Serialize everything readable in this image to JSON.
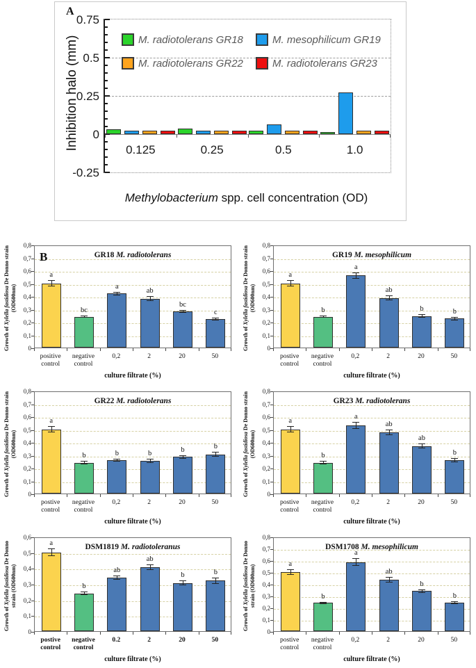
{
  "chart_data": [
    {
      "id": "panel-a",
      "type": "bar",
      "panel_label": "A",
      "ylabel": "Inhibition halo (mm)",
      "xlabel": {
        "italic": "Methylobacterium",
        "rest": " spp. cell concentration (OD)"
      },
      "ylim": [
        -0.25,
        0.75
      ],
      "yticks": [
        {
          "v": 0.75,
          "t": "0.75"
        },
        {
          "v": 0.5,
          "t": "0.5"
        },
        {
          "v": 0.25,
          "t": "0.25"
        },
        {
          "v": 0,
          "t": "0"
        },
        {
          "v": -0.25,
          "t": "-0.25"
        }
      ],
      "grid": "dashed-horizontal",
      "legend_position": "top-inside",
      "categories": [
        "0.125",
        "0.25",
        "0.5",
        "1.0"
      ],
      "series": [
        {
          "name": "M. radiotolerans GR18",
          "color": "#2bd42b",
          "values": [
            0.03,
            0.035,
            0.022,
            0.013
          ]
        },
        {
          "name": "M. mesophilicum GR19",
          "color": "#1e9cec",
          "values": [
            0.022,
            0.022,
            0.065,
            0.275
          ]
        },
        {
          "name": "M. radiotolerans GR22",
          "color": "#ffa41e",
          "values": [
            0.022,
            0.022,
            0.022,
            0.022
          ]
        },
        {
          "name": "M. radiotolerans GR23",
          "color": "#ee0f0f",
          "values": [
            0.022,
            0.022,
            0.022,
            0.022
          ]
        }
      ],
      "legend_text_color": "#595959"
    },
    {
      "id": "gr18",
      "type": "bar",
      "panel_label": "B",
      "title": {
        "prefix": "GR18",
        "species": "M. radiotolerans"
      },
      "ylabel": {
        "pre": "Growth of ",
        "italic": "Xylella fastidiosa",
        "post": " De Donno strain",
        "line2": "(OD600nm)"
      },
      "xlabel": "culture filtrate (%)",
      "ylim": [
        0,
        0.8
      ],
      "ytick_labels": [
        "0,8",
        "0,7",
        "0,6",
        "0,5",
        "0,4",
        "0,3",
        "0,2",
        "0,1",
        "0"
      ],
      "categories": [
        "positive control",
        "negative control",
        "0,2",
        "2",
        "20",
        "50"
      ],
      "values": [
        0.5,
        0.24,
        0.42,
        0.38,
        0.28,
        0.22
      ],
      "errors": [
        0.025,
        0.01,
        0.015,
        0.018,
        0.012,
        0.01
      ],
      "letters": [
        "a",
        "bc",
        "a",
        "ab",
        "bc",
        "c"
      ],
      "bar_colors": [
        "#fbd34e",
        "#54bf82",
        "#4a79b4",
        "#4a79b4",
        "#4a79b4",
        "#4a79b4"
      ]
    },
    {
      "id": "gr19",
      "type": "bar",
      "title": {
        "prefix": "GR19",
        "species": "M. mesophilicum"
      },
      "ylabel": {
        "pre": "Growth of ",
        "italic": "Xylella fastidiosa",
        "post": " De Donno strain",
        "line2": "(OD600nm)"
      },
      "xlabel": "culture filtrate (%)",
      "ylim": [
        0,
        0.8
      ],
      "ytick_labels": [
        "0,8",
        "0,7",
        "0,6",
        "0,5",
        "0,4",
        "0,3",
        "0,2",
        "0,1",
        "0"
      ],
      "categories": [
        "postive control",
        "negative control",
        "0,2",
        "2",
        "20",
        "50"
      ],
      "values": [
        0.5,
        0.24,
        0.56,
        0.385,
        0.245,
        0.225
      ],
      "errors": [
        0.025,
        0.01,
        0.025,
        0.018,
        0.012,
        0.012
      ],
      "letters": [
        "a",
        "b",
        "a",
        "ab",
        "b",
        "b"
      ],
      "bar_colors": [
        "#fbd34e",
        "#54bf82",
        "#4a79b4",
        "#4a79b4",
        "#4a79b4",
        "#4a79b4"
      ]
    },
    {
      "id": "gr22",
      "type": "bar",
      "title": {
        "prefix": "GR22",
        "species": "M. radiotolerans"
      },
      "ylabel": {
        "pre": "Growth of ",
        "italic": "Xylella fastidiosa",
        "post": " De Donno strain",
        "line2": "(OD600nm)"
      },
      "xlabel": "culture filtrate (%)",
      "ylim": [
        0,
        0.8
      ],
      "ytick_labels": [
        "0,8",
        "0,7",
        "0,6",
        "0,5",
        "0,4",
        "0,3",
        "0,2",
        "0,1",
        "0"
      ],
      "categories": [
        "postive control",
        "negative control",
        "0,2",
        "2",
        "20",
        "50"
      ],
      "values": [
        0.5,
        0.24,
        0.26,
        0.255,
        0.285,
        0.305
      ],
      "errors": [
        0.025,
        0.012,
        0.012,
        0.015,
        0.015,
        0.018
      ],
      "letters": [
        "a",
        "b",
        "b",
        "b",
        "b",
        "b"
      ],
      "bar_colors": [
        "#fbd34e",
        "#54bf82",
        "#4a79b4",
        "#4a79b4",
        "#4a79b4",
        "#4a79b4"
      ]
    },
    {
      "id": "gr23",
      "type": "bar",
      "title": {
        "prefix": "GR23",
        "species": "M. radiotolerans"
      },
      "ylabel": {
        "pre": "Growth of ",
        "italic": "Xylella fastidiosa",
        "post": " De Donno strain",
        "line2": "(OD600nm)"
      },
      "xlabel": "culture filtrate (%)",
      "ylim": [
        0,
        0.8
      ],
      "ytick_labels": [
        "0,8",
        "0,7",
        "0,6",
        "0,5",
        "0,4",
        "0,3",
        "0,2",
        "0,1",
        "0"
      ],
      "categories": [
        "postive control",
        "negative control",
        "0,2",
        "2",
        "20",
        "50"
      ],
      "values": [
        0.5,
        0.24,
        0.53,
        0.475,
        0.37,
        0.26
      ],
      "errors": [
        0.025,
        0.012,
        0.025,
        0.022,
        0.02,
        0.015
      ],
      "letters": [
        "a",
        "b",
        "a",
        "ab",
        "ab",
        "b"
      ],
      "bar_colors": [
        "#fbd34e",
        "#54bf82",
        "#4a79b4",
        "#4a79b4",
        "#4a79b4",
        "#4a79b4"
      ]
    },
    {
      "id": "dsm1819",
      "type": "bar",
      "title": {
        "prefix": "DSM1819",
        "species": "M. radiotoleranus"
      },
      "ylabel": {
        "pre": "Growth of ",
        "italic": "Xylella fastidiosa",
        "post": " De Donno",
        "line2": "strain (OD600nm)"
      },
      "xlabel": "culture filtrate (%)",
      "ylim": [
        0,
        0.6
      ],
      "ytick_labels": [
        "0,6",
        "0,5",
        "0,4",
        "0,3",
        "0,2",
        "0,1",
        "0"
      ],
      "categories": [
        "postive control",
        "negative control",
        "0.2",
        "2",
        "20",
        "50"
      ],
      "values": [
        0.5,
        0.24,
        0.34,
        0.405,
        0.305,
        0.32
      ],
      "errors": [
        0.025,
        0.012,
        0.015,
        0.018,
        0.015,
        0.018
      ],
      "letters": [
        "a",
        "b",
        "ab",
        "ab",
        "b",
        "b"
      ],
      "bar_colors": [
        "#fbd34e",
        "#54bf82",
        "#4a79b4",
        "#4a79b4",
        "#4a79b4",
        "#4a79b4"
      ],
      "x_tick_bold": true
    },
    {
      "id": "dsm1708",
      "type": "bar",
      "title": {
        "prefix": "DSM1708",
        "species": "M. mesophilicum"
      },
      "ylabel": {
        "pre": "Growth of ",
        "italic": "Xylella fastidiosa",
        "post": " De Donno",
        "line2": "strain (OD600nm)"
      },
      "xlabel": "culture filtrate (%)",
      "ylim": [
        0,
        0.8
      ],
      "ytick_labels": [
        "0,8",
        "0,7",
        "0,6",
        "0,5",
        "0,4",
        "0,3",
        "0,2",
        "0,1",
        "0"
      ],
      "categories": [
        "postive control",
        "negative control",
        "0,2",
        "2",
        "20",
        "50"
      ],
      "values": [
        0.5,
        0.24,
        0.585,
        0.435,
        0.34,
        0.24
      ],
      "errors": [
        0.025,
        0.01,
        0.03,
        0.022,
        0.015,
        0.012
      ],
      "letters": [
        "a",
        "b",
        "a",
        "ab",
        "b",
        "b"
      ],
      "bar_colors": [
        "#fbd34e",
        "#54bf82",
        "#4a79b4",
        "#4a79b4",
        "#4a79b4",
        "#4a79b4"
      ]
    }
  ]
}
